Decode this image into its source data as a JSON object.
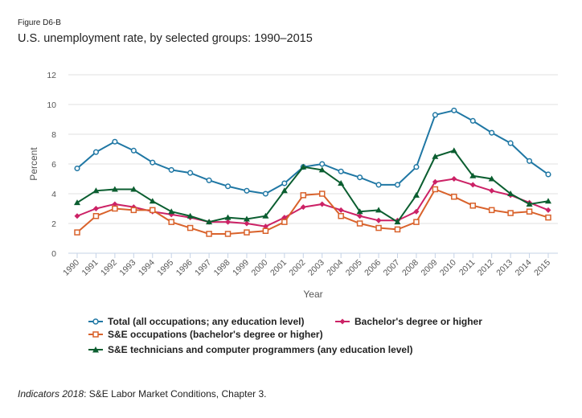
{
  "figure_label": "Figure D6-B",
  "chart_data": {
    "type": "line",
    "title": "U.S. unemployment rate, by selected groups: 1990–2015",
    "xlabel": "Year",
    "ylabel": "Percent",
    "ylim": [
      0,
      12
    ],
    "yticks": [
      0,
      2,
      4,
      6,
      8,
      10,
      12
    ],
    "grid": true,
    "legend_position": "bottom",
    "x": [
      "1990",
      "1991",
      "1992",
      "1993",
      "1994",
      "1995",
      "1996",
      "1997",
      "1998",
      "1999",
      "2000",
      "2001",
      "2002",
      "2003",
      "2004",
      "2005",
      "2006",
      "2007",
      "2008",
      "2009",
      "2010",
      "2011",
      "2012",
      "2013",
      "2014",
      "2015"
    ],
    "series": [
      {
        "name": "Total (all occupations; any education level)",
        "color": "#1f77a4",
        "marker": "circle",
        "values": [
          5.7,
          6.8,
          7.5,
          6.9,
          6.1,
          5.6,
          5.4,
          4.9,
          4.5,
          4.2,
          4.0,
          4.7,
          5.8,
          6.0,
          5.5,
          5.1,
          4.6,
          4.6,
          5.8,
          9.3,
          9.6,
          8.9,
          8.1,
          7.4,
          6.2,
          5.3
        ]
      },
      {
        "name": "Bachelor's degree or higher",
        "color": "#cc2266",
        "marker": "diamond",
        "values": [
          2.5,
          3.0,
          3.3,
          3.1,
          2.8,
          2.6,
          2.4,
          2.1,
          2.1,
          2.0,
          1.8,
          2.4,
          3.1,
          3.3,
          2.9,
          2.5,
          2.2,
          2.2,
          2.8,
          4.8,
          5.0,
          4.6,
          4.2,
          3.9,
          3.4,
          2.9
        ]
      },
      {
        "name": "S&E occupations (bachelor's degree or higher)",
        "color": "#d9622b",
        "marker": "square",
        "values": [
          1.4,
          2.5,
          3.0,
          2.9,
          2.9,
          2.1,
          1.7,
          1.3,
          1.3,
          1.4,
          1.5,
          2.1,
          3.9,
          4.0,
          2.5,
          2.0,
          1.7,
          1.6,
          2.1,
          4.3,
          3.8,
          3.2,
          2.9,
          2.7,
          2.8,
          2.4
        ]
      },
      {
        "name": "S&E technicians and computer programmers (any education level)",
        "color": "#0b5e30",
        "marker": "triangle",
        "values": [
          3.4,
          4.2,
          4.3,
          4.3,
          3.5,
          2.8,
          2.5,
          2.1,
          2.4,
          2.3,
          2.5,
          4.2,
          5.8,
          5.6,
          4.7,
          2.8,
          2.9,
          2.1,
          3.9,
          6.5,
          6.9,
          5.2,
          5.0,
          4.0,
          3.3,
          3.5
        ]
      }
    ]
  },
  "source": {
    "italic": "Indicators 2018",
    "rest": ": S&E Labor Market Conditions, Chapter 3."
  }
}
